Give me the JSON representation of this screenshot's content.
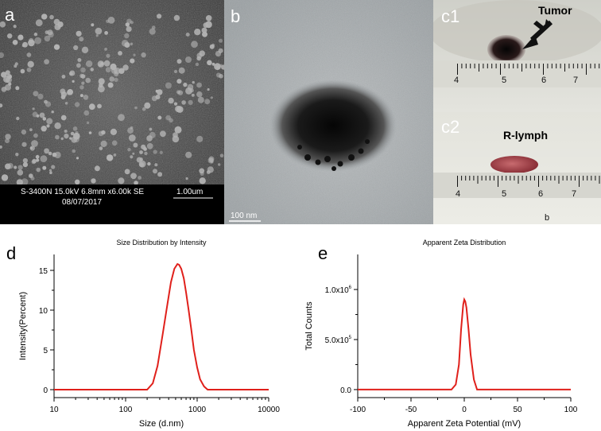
{
  "panels": {
    "a": {
      "label": "a",
      "caption_line1": "S-3400N 15.0kV 6.8mm x6.00k SE",
      "caption_line2": "08/07/2017",
      "scale": "1.00um"
    },
    "b": {
      "label": "b",
      "scale": "100 nm"
    },
    "c1": {
      "label": "c1",
      "annotation": "Tumor",
      "ruler_ticks": [
        "4",
        "5",
        "6",
        "7"
      ]
    },
    "c2": {
      "label": "c2",
      "annotation": "R-lymph",
      "ruler_ticks": [
        "4",
        "5",
        "6",
        "7"
      ],
      "corner_mark": "b"
    },
    "d": {
      "label": "d"
    },
    "e": {
      "label": "e"
    }
  },
  "colors": {
    "curve": "#e0201b",
    "axis": "#000000"
  },
  "chart_data": [
    {
      "type": "line",
      "title": "Size Distribution by Intensity",
      "xlabel": "Size (d.nm)",
      "ylabel": "Intensity(Percent)",
      "xscale": "log",
      "xlim": [
        10,
        10000
      ],
      "ylim": [
        -1,
        17
      ],
      "xticks": [
        "10",
        "100",
        "1000",
        "10000"
      ],
      "yticks": [
        "0",
        "5",
        "10",
        "15"
      ],
      "series": [
        {
          "x": [
            10,
            100,
            200,
            240,
            280,
            330,
            380,
            430,
            480,
            530,
            560,
            600,
            650,
            700,
            760,
            830,
            900,
            1000,
            1100,
            1250,
            1400,
            2000,
            10000
          ],
          "y": [
            0,
            0,
            0,
            0.8,
            3.0,
            7.0,
            10.5,
            13.5,
            15.2,
            15.8,
            15.7,
            15.2,
            14.0,
            12.2,
            10.0,
            7.5,
            5.0,
            2.8,
            1.3,
            0.4,
            0,
            0,
            0
          ]
        }
      ]
    },
    {
      "type": "line",
      "title": "Apparent Zeta Distribution",
      "xlabel": "Apparent Zeta Potential (mV)",
      "ylabel": "Total Counts",
      "xlim": [
        -100,
        100
      ],
      "ylim": [
        -80000,
        1350000
      ],
      "xticks": [
        "-100",
        "-50",
        "0",
        "50",
        "100"
      ],
      "yticks": [
        "0.0",
        "5.0x10^5",
        "1.0x10^6"
      ],
      "series": [
        {
          "x": [
            -100,
            -12,
            -8,
            -5,
            -3,
            -1,
            0,
            1,
            2,
            4,
            6,
            9,
            12,
            100
          ],
          "y": [
            0,
            0,
            50000,
            250000,
            600000,
            850000,
            900000,
            880000,
            820000,
            600000,
            350000,
            100000,
            0,
            0
          ]
        }
      ]
    }
  ]
}
